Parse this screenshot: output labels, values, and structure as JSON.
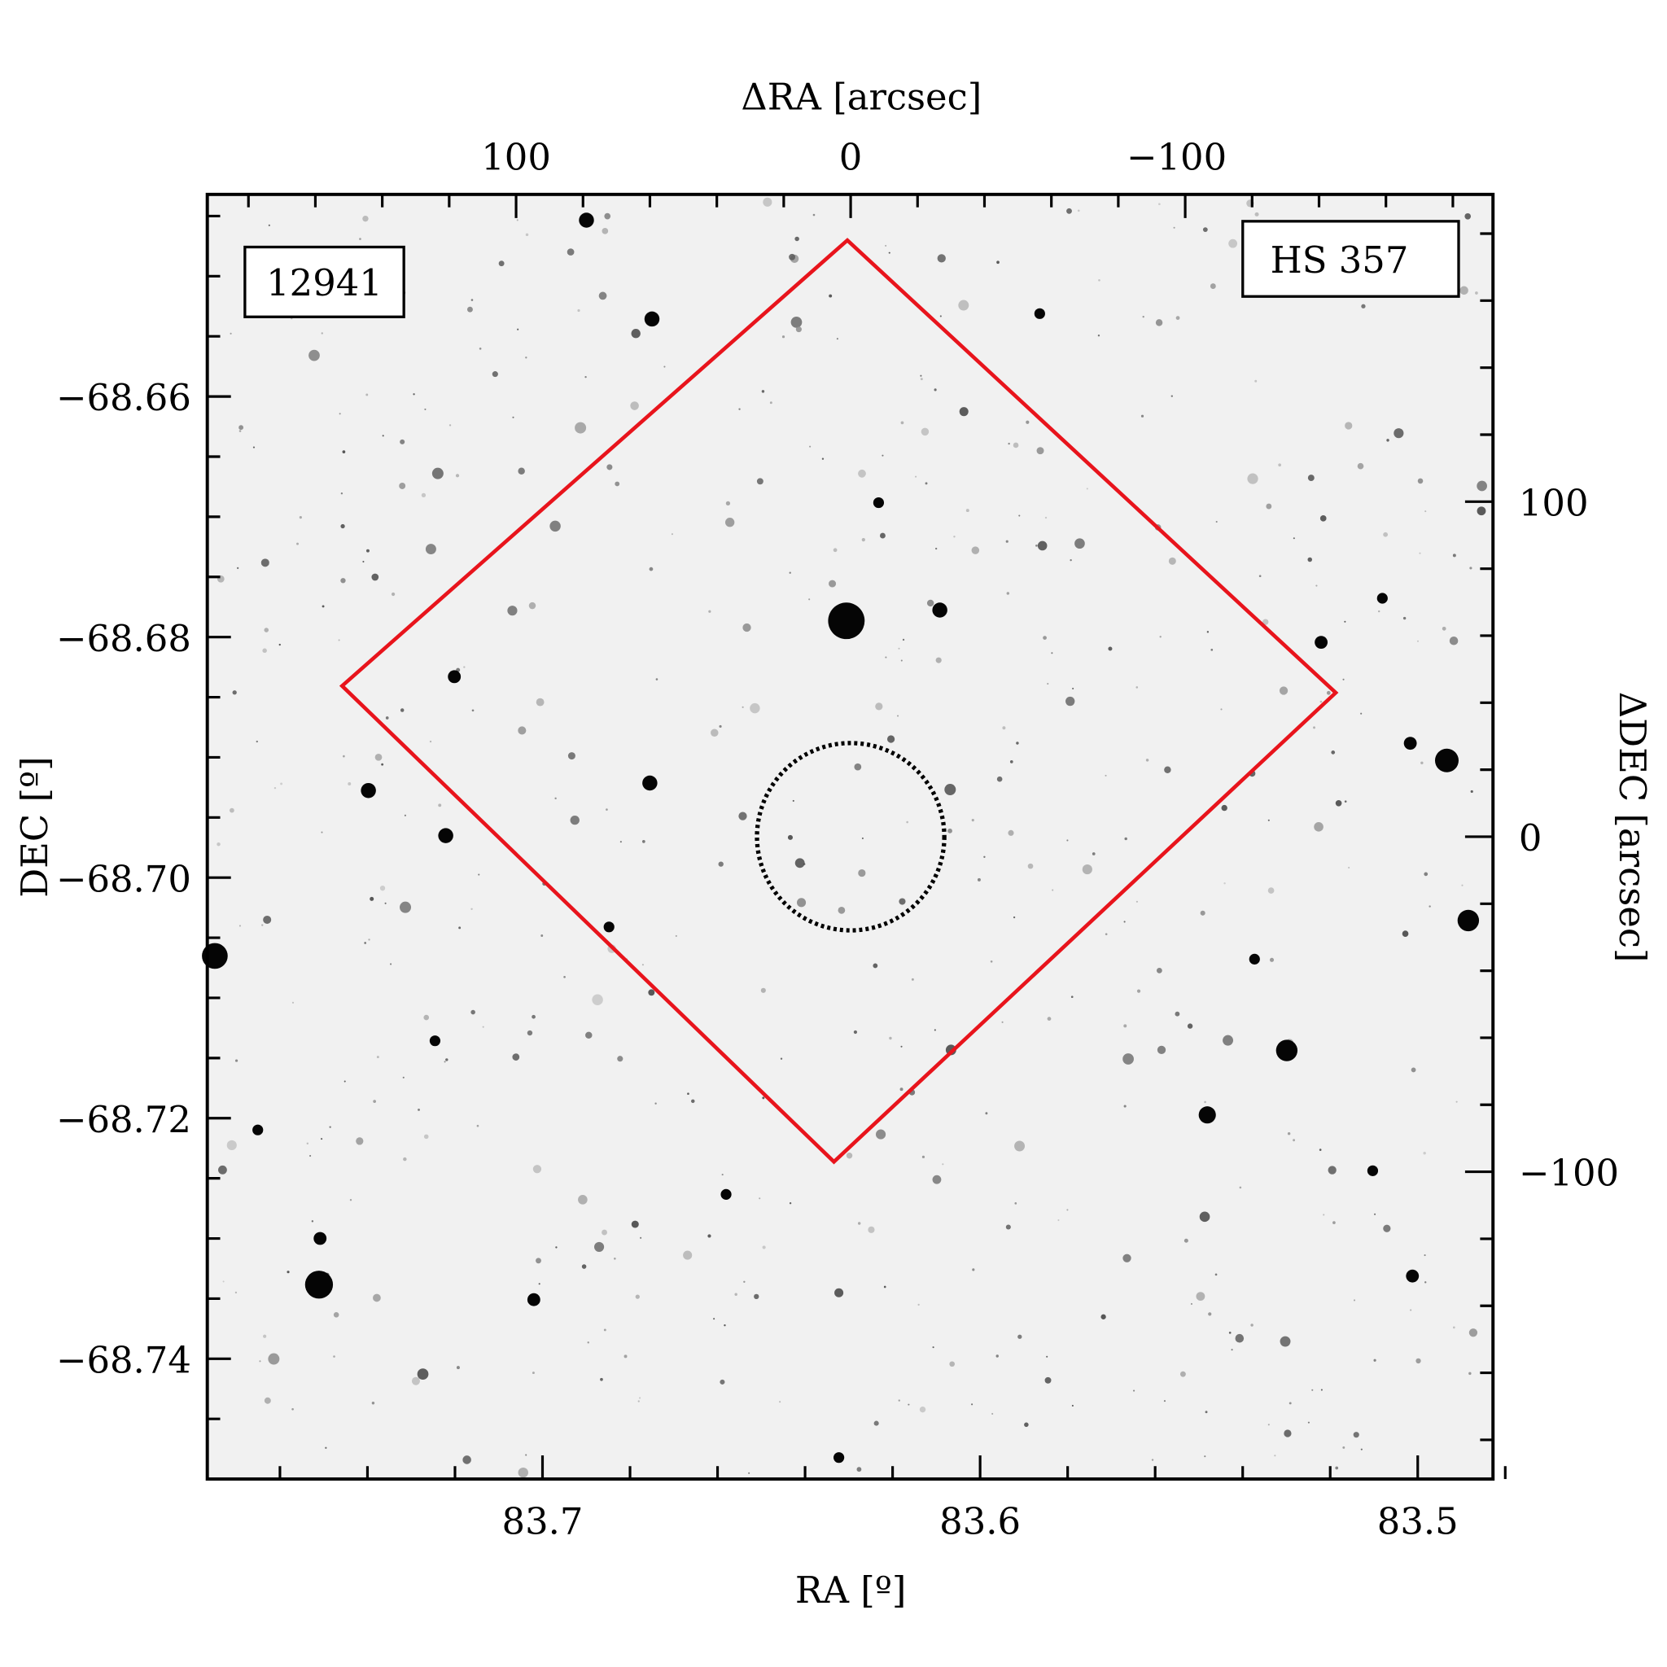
{
  "chart_data": {
    "type": "scatter",
    "title": "",
    "xlabel": "RA [º]",
    "ylabel": "DEC [º]",
    "x2label": "ΔRA [arcsec]",
    "y2label": "ΔDEC [arcsec]",
    "xlim": [
      83.7766,
      83.4828
    ],
    "ylim": [
      -68.75,
      -68.6432
    ],
    "x2lim": [
      192.3,
      -192.0
    ],
    "y2lim": [
      -191.7,
      191.7
    ],
    "xticks": [
      {
        "v": 83.7,
        "label": "83.7"
      },
      {
        "v": 83.6,
        "label": "83.6"
      },
      {
        "v": 83.5,
        "label": "83.5"
      }
    ],
    "yticks": [
      {
        "v": -68.66,
        "label": "−68.66"
      },
      {
        "v": -68.68,
        "label": "−68.68"
      },
      {
        "v": -68.7,
        "label": "−68.70"
      },
      {
        "v": -68.72,
        "label": "−68.72"
      },
      {
        "v": -68.74,
        "label": "−68.74"
      }
    ],
    "x2ticks": [
      {
        "v": 100,
        "label": "100"
      },
      {
        "v": 0,
        "label": "0"
      },
      {
        "v": -100,
        "label": "−100"
      }
    ],
    "y2ticks": [
      {
        "v": 100,
        "label": "100"
      },
      {
        "v": 0,
        "label": "0"
      },
      {
        "v": -100,
        "label": "−100"
      }
    ],
    "grid": false,
    "overlays": {
      "footprint_polygon_arcsec": [
        [
          1,
          178
        ],
        [
          -145,
          43
        ],
        [
          5,
          -97
        ],
        [
          152,
          45
        ]
      ],
      "footprint_color": "#e8141c",
      "cluster_circle": {
        "center_arcsec": [
          0,
          0
        ],
        "radius_arcsec": 28,
        "style": "dotted",
        "color": "#000000"
      }
    },
    "annotations": {
      "id_label": "12941",
      "id_color": "#e8141c",
      "object_label": "HS 357"
    },
    "background": "inverted-grayscale star field"
  }
}
